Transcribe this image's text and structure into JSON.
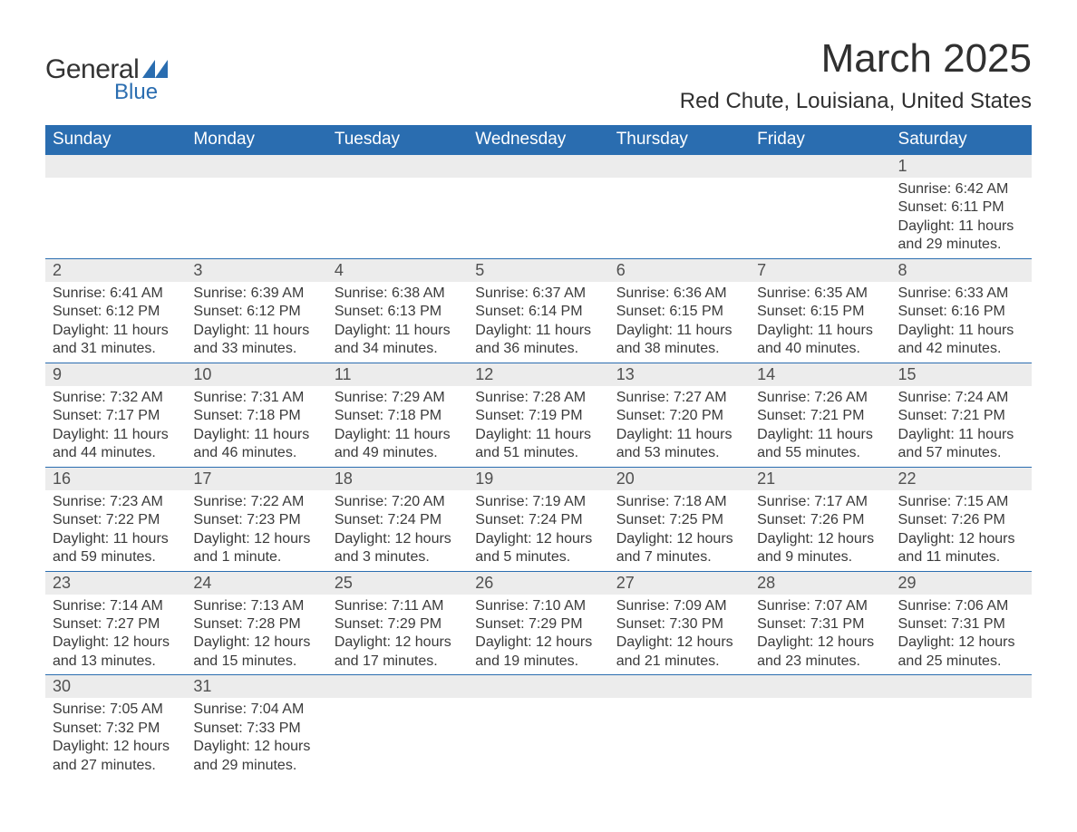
{
  "logo": {
    "general": "General",
    "blue": "Blue",
    "shape_color": "#2a6db0"
  },
  "title": "March 2025",
  "location": "Red Chute, Louisiana, United States",
  "weekdays": [
    "Sunday",
    "Monday",
    "Tuesday",
    "Wednesday",
    "Thursday",
    "Friday",
    "Saturday"
  ],
  "colors": {
    "header_bg": "#2a6db0",
    "header_text": "#ffffff",
    "daynum_bg": "#ececec",
    "text": "#3a3a3a",
    "border": "#2a6db0",
    "background": "#ffffff"
  },
  "fonts": {
    "title_size_pt": 33,
    "location_size_pt": 18,
    "weekday_size_pt": 14,
    "daynum_size_pt": 14,
    "body_size_pt": 12
  },
  "weeks": [
    [
      {
        "empty": true
      },
      {
        "empty": true
      },
      {
        "empty": true
      },
      {
        "empty": true
      },
      {
        "empty": true
      },
      {
        "empty": true
      },
      {
        "day": "1",
        "sunrise": "Sunrise: 6:42 AM",
        "sunset": "Sunset: 6:11 PM",
        "daylight": "Daylight: 11 hours and 29 minutes."
      }
    ],
    [
      {
        "day": "2",
        "sunrise": "Sunrise: 6:41 AM",
        "sunset": "Sunset: 6:12 PM",
        "daylight": "Daylight: 11 hours and 31 minutes."
      },
      {
        "day": "3",
        "sunrise": "Sunrise: 6:39 AM",
        "sunset": "Sunset: 6:12 PM",
        "daylight": "Daylight: 11 hours and 33 minutes."
      },
      {
        "day": "4",
        "sunrise": "Sunrise: 6:38 AM",
        "sunset": "Sunset: 6:13 PM",
        "daylight": "Daylight: 11 hours and 34 minutes."
      },
      {
        "day": "5",
        "sunrise": "Sunrise: 6:37 AM",
        "sunset": "Sunset: 6:14 PM",
        "daylight": "Daylight: 11 hours and 36 minutes."
      },
      {
        "day": "6",
        "sunrise": "Sunrise: 6:36 AM",
        "sunset": "Sunset: 6:15 PM",
        "daylight": "Daylight: 11 hours and 38 minutes."
      },
      {
        "day": "7",
        "sunrise": "Sunrise: 6:35 AM",
        "sunset": "Sunset: 6:15 PM",
        "daylight": "Daylight: 11 hours and 40 minutes."
      },
      {
        "day": "8",
        "sunrise": "Sunrise: 6:33 AM",
        "sunset": "Sunset: 6:16 PM",
        "daylight": "Daylight: 11 hours and 42 minutes."
      }
    ],
    [
      {
        "day": "9",
        "sunrise": "Sunrise: 7:32 AM",
        "sunset": "Sunset: 7:17 PM",
        "daylight": "Daylight: 11 hours and 44 minutes."
      },
      {
        "day": "10",
        "sunrise": "Sunrise: 7:31 AM",
        "sunset": "Sunset: 7:18 PM",
        "daylight": "Daylight: 11 hours and 46 minutes."
      },
      {
        "day": "11",
        "sunrise": "Sunrise: 7:29 AM",
        "sunset": "Sunset: 7:18 PM",
        "daylight": "Daylight: 11 hours and 49 minutes."
      },
      {
        "day": "12",
        "sunrise": "Sunrise: 7:28 AM",
        "sunset": "Sunset: 7:19 PM",
        "daylight": "Daylight: 11 hours and 51 minutes."
      },
      {
        "day": "13",
        "sunrise": "Sunrise: 7:27 AM",
        "sunset": "Sunset: 7:20 PM",
        "daylight": "Daylight: 11 hours and 53 minutes."
      },
      {
        "day": "14",
        "sunrise": "Sunrise: 7:26 AM",
        "sunset": "Sunset: 7:21 PM",
        "daylight": "Daylight: 11 hours and 55 minutes."
      },
      {
        "day": "15",
        "sunrise": "Sunrise: 7:24 AM",
        "sunset": "Sunset: 7:21 PM",
        "daylight": "Daylight: 11 hours and 57 minutes."
      }
    ],
    [
      {
        "day": "16",
        "sunrise": "Sunrise: 7:23 AM",
        "sunset": "Sunset: 7:22 PM",
        "daylight": "Daylight: 11 hours and 59 minutes."
      },
      {
        "day": "17",
        "sunrise": "Sunrise: 7:22 AM",
        "sunset": "Sunset: 7:23 PM",
        "daylight": "Daylight: 12 hours and 1 minute."
      },
      {
        "day": "18",
        "sunrise": "Sunrise: 7:20 AM",
        "sunset": "Sunset: 7:24 PM",
        "daylight": "Daylight: 12 hours and 3 minutes."
      },
      {
        "day": "19",
        "sunrise": "Sunrise: 7:19 AM",
        "sunset": "Sunset: 7:24 PM",
        "daylight": "Daylight: 12 hours and 5 minutes."
      },
      {
        "day": "20",
        "sunrise": "Sunrise: 7:18 AM",
        "sunset": "Sunset: 7:25 PM",
        "daylight": "Daylight: 12 hours and 7 minutes."
      },
      {
        "day": "21",
        "sunrise": "Sunrise: 7:17 AM",
        "sunset": "Sunset: 7:26 PM",
        "daylight": "Daylight: 12 hours and 9 minutes."
      },
      {
        "day": "22",
        "sunrise": "Sunrise: 7:15 AM",
        "sunset": "Sunset: 7:26 PM",
        "daylight": "Daylight: 12 hours and 11 minutes."
      }
    ],
    [
      {
        "day": "23",
        "sunrise": "Sunrise: 7:14 AM",
        "sunset": "Sunset: 7:27 PM",
        "daylight": "Daylight: 12 hours and 13 minutes."
      },
      {
        "day": "24",
        "sunrise": "Sunrise: 7:13 AM",
        "sunset": "Sunset: 7:28 PM",
        "daylight": "Daylight: 12 hours and 15 minutes."
      },
      {
        "day": "25",
        "sunrise": "Sunrise: 7:11 AM",
        "sunset": "Sunset: 7:29 PM",
        "daylight": "Daylight: 12 hours and 17 minutes."
      },
      {
        "day": "26",
        "sunrise": "Sunrise: 7:10 AM",
        "sunset": "Sunset: 7:29 PM",
        "daylight": "Daylight: 12 hours and 19 minutes."
      },
      {
        "day": "27",
        "sunrise": "Sunrise: 7:09 AM",
        "sunset": "Sunset: 7:30 PM",
        "daylight": "Daylight: 12 hours and 21 minutes."
      },
      {
        "day": "28",
        "sunrise": "Sunrise: 7:07 AM",
        "sunset": "Sunset: 7:31 PM",
        "daylight": "Daylight: 12 hours and 23 minutes."
      },
      {
        "day": "29",
        "sunrise": "Sunrise: 7:06 AM",
        "sunset": "Sunset: 7:31 PM",
        "daylight": "Daylight: 12 hours and 25 minutes."
      }
    ],
    [
      {
        "day": "30",
        "sunrise": "Sunrise: 7:05 AM",
        "sunset": "Sunset: 7:32 PM",
        "daylight": "Daylight: 12 hours and 27 minutes."
      },
      {
        "day": "31",
        "sunrise": "Sunrise: 7:04 AM",
        "sunset": "Sunset: 7:33 PM",
        "daylight": "Daylight: 12 hours and 29 minutes."
      },
      {
        "empty": true
      },
      {
        "empty": true
      },
      {
        "empty": true
      },
      {
        "empty": true
      },
      {
        "empty": true
      }
    ]
  ]
}
